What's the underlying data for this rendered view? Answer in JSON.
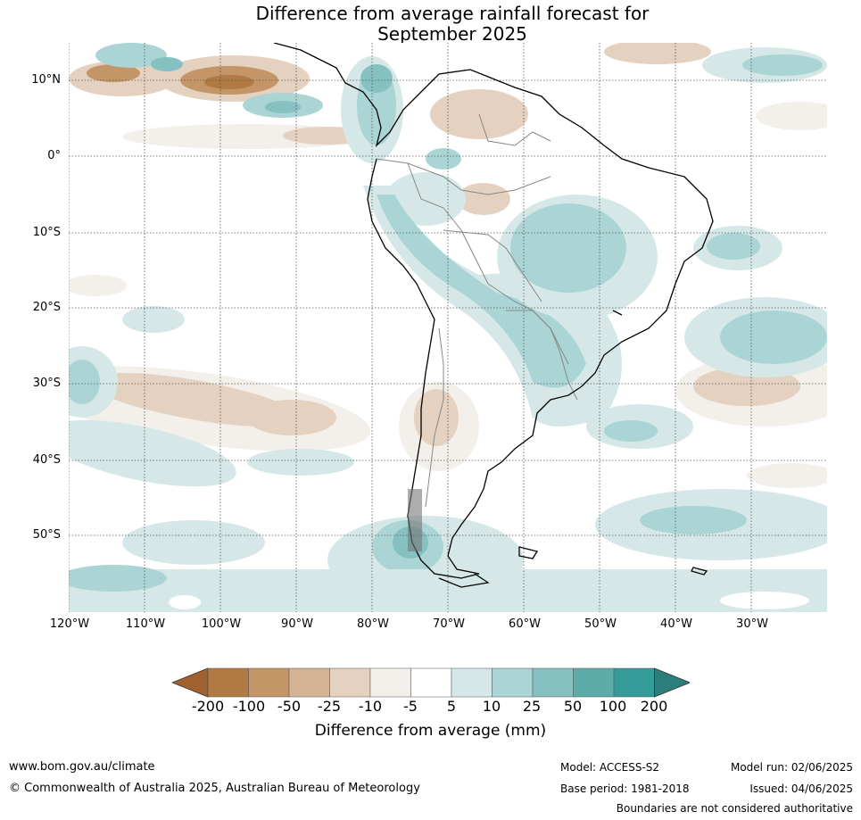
{
  "title_line1": "Difference from average rainfall forecast for",
  "title_line2": "September 2025",
  "lat_labels": [
    "10°N",
    "0°",
    "10°S",
    "20°S",
    "30°S",
    "40°S",
    "50°S"
  ],
  "lon_labels": [
    "120°W",
    "110°W",
    "100°W",
    "90°W",
    "80°W",
    "70°W",
    "60°W",
    "50°W",
    "40°W",
    "30°W"
  ],
  "legend": {
    "ticks": [
      "-200",
      "-100",
      "-50",
      "-25",
      "-10",
      "-5",
      "5",
      "10",
      "25",
      "50",
      "100",
      "200"
    ],
    "colors": [
      "#a0612e",
      "#b17a42",
      "#c39567",
      "#d3b393",
      "#e5d1bf",
      "#f3efea",
      "#ffffff",
      "#d5e8e7",
      "#aad5d4",
      "#85c1c0",
      "#5eacaa",
      "#349b98",
      "#2b7e7c"
    ],
    "label": "Difference from average (mm)"
  },
  "footer": {
    "website": "www.bom.gov.au/climate",
    "copyright": "© Commonwealth of Australia 2025, Australian Bureau of Meteorology",
    "model": "Model: ACCESS-S2",
    "base_period": "Base period: 1981-2018",
    "model_run": "Model run: 02/06/2025",
    "issued": "Issued: 04/06/2025",
    "disclaimer": "Boundaries are not considered authoritative"
  }
}
